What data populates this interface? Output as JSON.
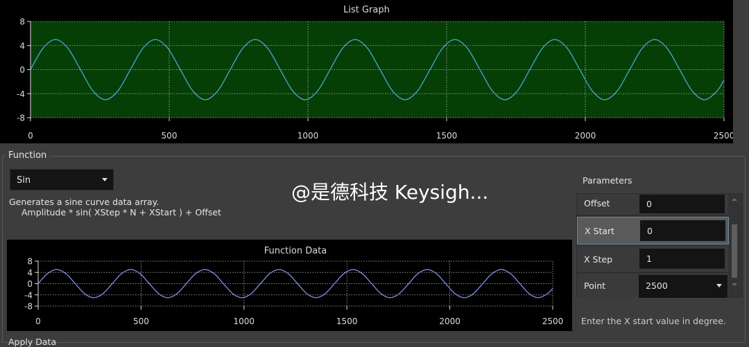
{
  "top_graph": {
    "title": "List Graph",
    "plot_bg": "#053f05",
    "line_color": "#4a9ccc"
  },
  "function_group": {
    "label": "Function",
    "selected_function": "Sin",
    "description_line1": "Generates a sine curve data array.",
    "description_line2": "Amplitude * sin( XStep * N + XStart ) + Offset"
  },
  "function_graph": {
    "title": "Function Data",
    "line_color": "#7d86d8"
  },
  "parameters": {
    "label": "Parameters",
    "rows": [
      {
        "name": "Offset",
        "value": "0"
      },
      {
        "name": "X Start",
        "value": "0"
      },
      {
        "name": "X Step",
        "value": "1"
      },
      {
        "name": "Point",
        "value": "2500"
      }
    ],
    "help_text": "Enter the X start value in degree."
  },
  "apply_label": "Apply Data",
  "watermark": "@是德科技 Keysigh...",
  "chart_data": [
    {
      "type": "line",
      "title": "List Graph",
      "xlim": [
        0,
        2500
      ],
      "ylim": [
        -8,
        8
      ],
      "x_ticks": [
        "0",
        "500",
        "1000",
        "1500",
        "2000",
        "2500"
      ],
      "y_ticks": [
        "8",
        "4",
        "0",
        "-4",
        "-8"
      ],
      "grid": true,
      "series": [
        {
          "x": [
            0,
            45,
            90,
            135,
            180,
            225,
            270,
            315,
            360,
            405,
            450,
            495,
            540,
            585,
            630,
            675,
            720,
            765,
            810,
            855,
            900,
            945,
            990,
            1035,
            1080,
            1125,
            1170,
            1215,
            1260,
            1305,
            1350,
            1395,
            1440,
            1485,
            1530,
            1575,
            1620,
            1665,
            1710,
            1755,
            1800,
            1845,
            1890,
            1935,
            1980,
            2025,
            2070,
            2115,
            2160,
            2205,
            2250,
            2295,
            2340,
            2385,
            2430,
            2475,
            2500
          ],
          "y": [
            0,
            3.54,
            5,
            3.54,
            0,
            -3.54,
            -5,
            -3.54,
            0,
            3.54,
            5,
            3.54,
            0,
            -3.54,
            -5,
            -3.54,
            0,
            3.54,
            5,
            3.54,
            0,
            -3.54,
            -5,
            -3.54,
            0,
            3.54,
            5,
            3.54,
            0,
            -3.54,
            -5,
            -3.54,
            0,
            3.54,
            5,
            3.54,
            0,
            -3.54,
            -5,
            -3.54,
            0,
            3.54,
            5,
            3.54,
            0,
            -3.54,
            -5,
            -3.54,
            0,
            3.54,
            5,
            3.54,
            0,
            -3.54,
            -5,
            -3.54,
            -1.71
          ]
        }
      ]
    },
    {
      "type": "line",
      "title": "Function Data",
      "xlim": [
        0,
        2500
      ],
      "ylim": [
        -8,
        8
      ],
      "x_ticks": [
        "0",
        "500",
        "1000",
        "1500",
        "2000",
        "2500"
      ],
      "y_ticks": [
        "8",
        "4",
        "0",
        "-4",
        "-8"
      ],
      "grid": true,
      "series": [
        {
          "x": [
            0,
            45,
            90,
            135,
            180,
            225,
            270,
            315,
            360,
            405,
            450,
            495,
            540,
            585,
            630,
            675,
            720,
            765,
            810,
            855,
            900,
            945,
            990,
            1035,
            1080,
            1125,
            1170,
            1215,
            1260,
            1305,
            1350,
            1395,
            1440,
            1485,
            1530,
            1575,
            1620,
            1665,
            1710,
            1755,
            1800,
            1845,
            1890,
            1935,
            1980,
            2025,
            2070,
            2115,
            2160,
            2205,
            2250,
            2295,
            2340,
            2385,
            2430,
            2475,
            2500
          ],
          "y": [
            0,
            3.54,
            5,
            3.54,
            0,
            -3.54,
            -5,
            -3.54,
            0,
            3.54,
            5,
            3.54,
            0,
            -3.54,
            -5,
            -3.54,
            0,
            3.54,
            5,
            3.54,
            0,
            -3.54,
            -5,
            -3.54,
            0,
            3.54,
            5,
            3.54,
            0,
            -3.54,
            -5,
            -3.54,
            0,
            3.54,
            5,
            3.54,
            0,
            -3.54,
            -5,
            -3.54,
            0,
            3.54,
            5,
            3.54,
            0,
            -3.54,
            -5,
            -3.54,
            0,
            3.54,
            5,
            3.54,
            0,
            -3.54,
            -5,
            -3.54,
            -1.71
          ]
        }
      ]
    }
  ]
}
